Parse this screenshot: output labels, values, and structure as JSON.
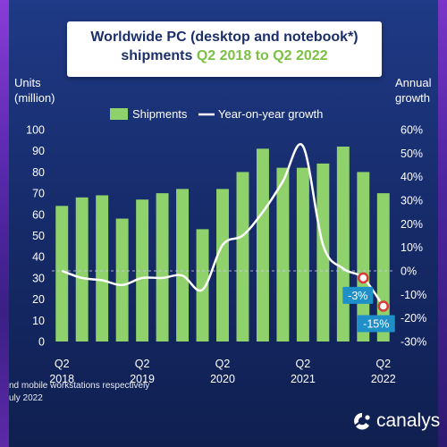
{
  "title": {
    "line1": "Worldwide PC (desktop and notebook*)",
    "line2_prefix": "shipments ",
    "line2_highlight": "Q2 2018 to Q2 2022"
  },
  "y_left_title": [
    "Units",
    "(million)"
  ],
  "y_right_title": [
    "Annual",
    "growth"
  ],
  "footnote": [
    "nd mobile workstations respectively",
    "uly 2022"
  ],
  "logo": {
    "word": "canalys",
    "icon": "canalys-logo-icon"
  },
  "colors": {
    "bar": "#8fd16a",
    "line": "#ffffff",
    "grid": "#3c5aa8",
    "callout_box": "#1f8fc8",
    "callout_marker": "#d93a3a"
  },
  "chart_data": {
    "type": "bar",
    "categories": [
      "Q2 2018",
      "Q3 2018",
      "Q4 2018",
      "Q1 2019",
      "Q2 2019",
      "Q3 2019",
      "Q4 2019",
      "Q1 2020",
      "Q2 2020",
      "Q3 2020",
      "Q4 2020",
      "Q1 2021",
      "Q2 2021",
      "Q3 2021",
      "Q4 2021",
      "Q1 2022",
      "Q2 2022"
    ],
    "x_tick_labels": [
      {
        "index": 0,
        "top": "Q2",
        "bottom": "2018"
      },
      {
        "index": 4,
        "top": "Q2",
        "bottom": "2019"
      },
      {
        "index": 8,
        "top": "Q2",
        "bottom": "2020"
      },
      {
        "index": 12,
        "top": "Q2",
        "bottom": "2021"
      },
      {
        "index": 16,
        "top": "Q2",
        "bottom": "2022"
      }
    ],
    "series": [
      {
        "name": "Shipments",
        "axis": "left",
        "type": "bar",
        "values": [
          64,
          68,
          69,
          58,
          67,
          70,
          72,
          53,
          72,
          80,
          91,
          82,
          82,
          84,
          92,
          80,
          70
        ]
      },
      {
        "name": "Year-on-year growth",
        "axis": "right",
        "type": "line",
        "values": [
          0,
          -3,
          -4,
          -6,
          -3,
          -3,
          -2,
          -8,
          11,
          15,
          25,
          38,
          53,
          11,
          1,
          -3,
          -15
        ]
      }
    ],
    "y_left": {
      "min": 0,
      "max": 100,
      "step": 10,
      "ticks": [
        "0",
        "10",
        "20",
        "30",
        "40",
        "50",
        "60",
        "70",
        "80",
        "90",
        "100"
      ]
    },
    "y_right": {
      "min": -30,
      "max": 60,
      "step": 10,
      "ticks": [
        "-30%",
        "-20%",
        "-10%",
        "0%",
        "10%",
        "20%",
        "30%",
        "40%",
        "50%",
        "60%"
      ]
    },
    "legend": {
      "placement": "top",
      "items": [
        {
          "label": "Shipments",
          "kind": "bar"
        },
        {
          "label": "Year-on-year growth",
          "kind": "line"
        }
      ]
    },
    "reference_line": {
      "axis": "right",
      "value": 0,
      "style": "dashed"
    },
    "annotations": [
      {
        "index": 15,
        "label": "-3%"
      },
      {
        "index": 16,
        "label": "-15%"
      }
    ],
    "grid": true
  }
}
